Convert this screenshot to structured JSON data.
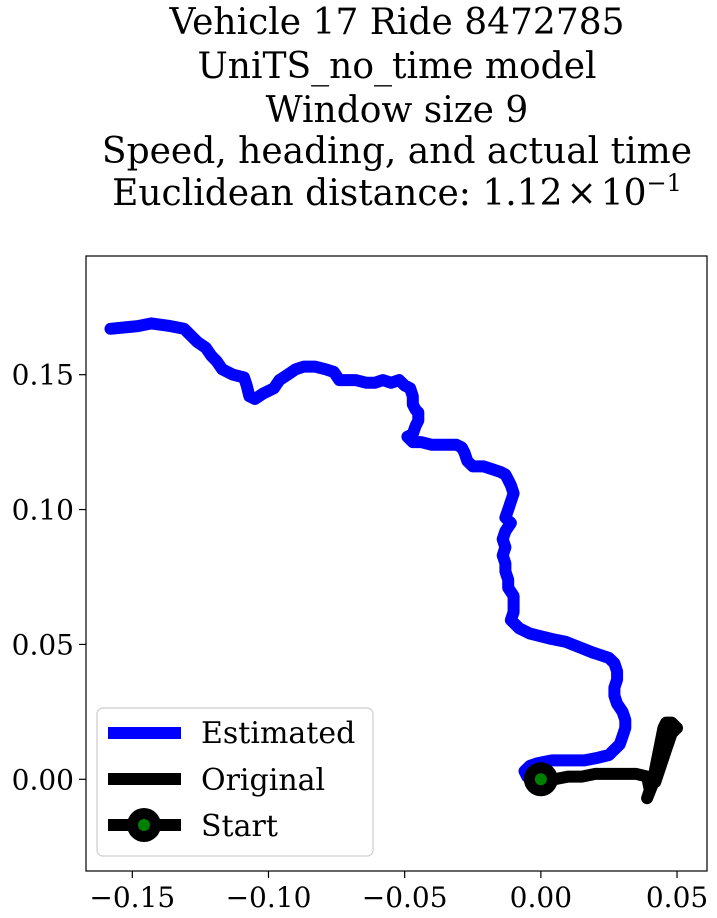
{
  "chart_data": {
    "type": "line",
    "title_lines": [
      "Vehicle 17 Ride 8472785",
      "UniTS_no_time model",
      "Window size 9",
      "Speed, heading, and actual time"
    ],
    "title_metric_label": "Euclidean distance: ",
    "title_metric_mantissa": "1.12",
    "title_metric_times": "×",
    "title_metric_base": "10",
    "title_metric_exponent": "−1",
    "xlim": [
      -0.167,
      0.061
    ],
    "ylim": [
      -0.034,
      0.194
    ],
    "x_ticks": [
      -0.15,
      -0.1,
      -0.05,
      0.0,
      0.05
    ],
    "x_tick_labels": [
      "−0.15",
      "−0.10",
      "−0.05",
      "0.00",
      "0.05"
    ],
    "y_ticks": [
      0.0,
      0.05,
      0.1,
      0.15
    ],
    "y_tick_labels": [
      "0.00",
      "0.05",
      "0.10",
      "0.15"
    ],
    "grid": false,
    "legend_position": "lower-left",
    "series": [
      {
        "name": "Estimated",
        "color": "#0000ff",
        "points": [
          [
            -0.158,
            0.167
          ],
          [
            -0.148,
            0.168
          ],
          [
            -0.143,
            0.169
          ],
          [
            -0.136,
            0.168
          ],
          [
            -0.131,
            0.167
          ],
          [
            -0.128,
            0.164
          ],
          [
            -0.126,
            0.162
          ],
          [
            -0.123,
            0.16
          ],
          [
            -0.121,
            0.157
          ],
          [
            -0.119,
            0.155
          ],
          [
            -0.117,
            0.152
          ],
          [
            -0.113,
            0.15
          ],
          [
            -0.109,
            0.149
          ],
          [
            -0.108,
            0.146
          ],
          [
            -0.107,
            0.142
          ],
          [
            -0.105,
            0.141
          ],
          [
            -0.102,
            0.143
          ],
          [
            -0.098,
            0.145
          ],
          [
            -0.096,
            0.148
          ],
          [
            -0.093,
            0.15
          ],
          [
            -0.09,
            0.152
          ],
          [
            -0.087,
            0.153
          ],
          [
            -0.083,
            0.153
          ],
          [
            -0.079,
            0.152
          ],
          [
            -0.076,
            0.151
          ],
          [
            -0.074,
            0.148
          ],
          [
            -0.071,
            0.148
          ],
          [
            -0.068,
            0.148
          ],
          [
            -0.064,
            0.147
          ],
          [
            -0.061,
            0.147
          ],
          [
            -0.058,
            0.148
          ],
          [
            -0.055,
            0.147
          ],
          [
            -0.052,
            0.148
          ],
          [
            -0.05,
            0.146
          ],
          [
            -0.048,
            0.145
          ],
          [
            -0.047,
            0.142
          ],
          [
            -0.047,
            0.139
          ],
          [
            -0.046,
            0.137
          ],
          [
            -0.045,
            0.136
          ],
          [
            -0.045,
            0.133
          ],
          [
            -0.046,
            0.131
          ],
          [
            -0.047,
            0.128
          ],
          [
            -0.049,
            0.127
          ],
          [
            -0.047,
            0.125
          ],
          [
            -0.044,
            0.125
          ],
          [
            -0.04,
            0.124
          ],
          [
            -0.035,
            0.124
          ],
          [
            -0.031,
            0.124
          ],
          [
            -0.029,
            0.123
          ],
          [
            -0.028,
            0.121
          ],
          [
            -0.027,
            0.118
          ],
          [
            -0.025,
            0.116
          ],
          [
            -0.021,
            0.116
          ],
          [
            -0.018,
            0.115
          ],
          [
            -0.015,
            0.114
          ],
          [
            -0.013,
            0.113
          ],
          [
            -0.012,
            0.111
          ],
          [
            -0.011,
            0.109
          ],
          [
            -0.01,
            0.106
          ],
          [
            -0.011,
            0.103
          ],
          [
            -0.012,
            0.1
          ],
          [
            -0.013,
            0.097
          ],
          [
            -0.011,
            0.095
          ],
          [
            -0.013,
            0.092
          ],
          [
            -0.014,
            0.089
          ],
          [
            -0.013,
            0.086
          ],
          [
            -0.014,
            0.083
          ],
          [
            -0.013,
            0.08
          ],
          [
            -0.013,
            0.077
          ],
          [
            -0.012,
            0.074
          ],
          [
            -0.012,
            0.071
          ],
          [
            -0.01,
            0.068
          ],
          [
            -0.01,
            0.065
          ],
          [
            -0.01,
            0.062
          ],
          [
            -0.011,
            0.059
          ],
          [
            -0.008,
            0.056
          ],
          [
            -0.004,
            0.054
          ],
          [
            0.0,
            0.053
          ],
          [
            0.004,
            0.052
          ],
          [
            0.009,
            0.051
          ],
          [
            0.014,
            0.049
          ],
          [
            0.019,
            0.047
          ],
          [
            0.022,
            0.046
          ],
          [
            0.025,
            0.045
          ],
          [
            0.027,
            0.043
          ],
          [
            0.028,
            0.04
          ],
          [
            0.028,
            0.037
          ],
          [
            0.027,
            0.034
          ],
          [
            0.027,
            0.031
          ],
          [
            0.028,
            0.028
          ],
          [
            0.03,
            0.025
          ],
          [
            0.031,
            0.022
          ],
          [
            0.031,
            0.019
          ],
          [
            0.03,
            0.016
          ],
          [
            0.029,
            0.013
          ],
          [
            0.027,
            0.011
          ],
          [
            0.025,
            0.009
          ],
          [
            0.021,
            0.008
          ],
          [
            0.016,
            0.007
          ],
          [
            0.01,
            0.007
          ],
          [
            0.004,
            0.007
          ],
          [
            -0.001,
            0.006
          ],
          [
            -0.004,
            0.005
          ],
          [
            -0.006,
            0.003
          ],
          [
            -0.005,
            0.001
          ]
        ]
      },
      {
        "name": "Original",
        "color": "#000000",
        "points": [
          [
            0.0,
            0.0
          ],
          [
            0.005,
            0.0
          ],
          [
            0.01,
            0.001
          ],
          [
            0.015,
            0.001
          ],
          [
            0.02,
            0.002
          ],
          [
            0.025,
            0.002
          ],
          [
            0.03,
            0.002
          ],
          [
            0.035,
            0.002
          ],
          [
            0.039,
            0.001
          ],
          [
            0.04,
            -0.004
          ],
          [
            0.039,
            -0.007
          ],
          [
            0.041,
            -0.002
          ],
          [
            0.042,
            0.004
          ],
          [
            0.043,
            0.009
          ],
          [
            0.044,
            0.014
          ],
          [
            0.045,
            0.019
          ],
          [
            0.046,
            0.021
          ],
          [
            0.048,
            0.021
          ],
          [
            0.05,
            0.019
          ],
          [
            0.048,
            0.017
          ],
          [
            0.047,
            0.014
          ],
          [
            0.046,
            0.011
          ],
          [
            0.045,
            0.008
          ],
          [
            0.044,
            0.005
          ],
          [
            0.043,
            0.002
          ],
          [
            0.042,
            -0.001
          ]
        ]
      }
    ],
    "start_marker": {
      "name": "Start",
      "x": 0.0,
      "y": 0.0,
      "outer_color": "#000000",
      "inner_color": "#008000"
    },
    "legend": [
      {
        "label": "Estimated",
        "color": "#0000ff"
      },
      {
        "label": "Original",
        "color": "#000000"
      },
      {
        "label": "Start",
        "color": "#000000",
        "marker_color": "#008000"
      }
    ]
  }
}
